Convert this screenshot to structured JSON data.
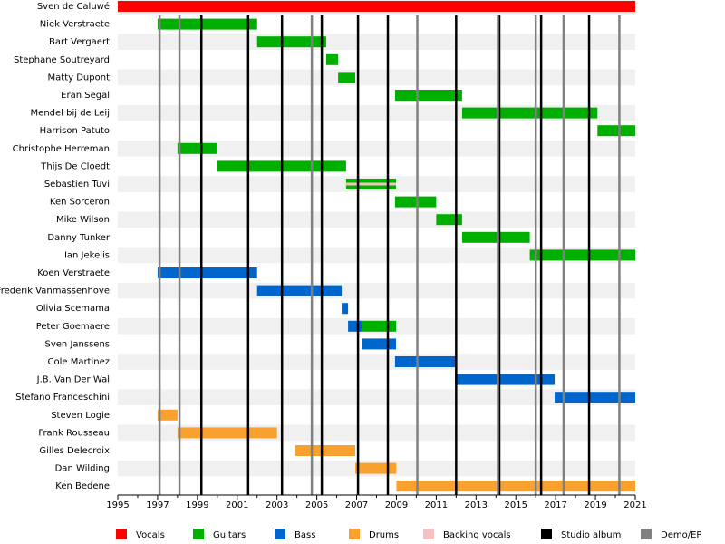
{
  "chart_data": {
    "type": "timeline",
    "categories": [
      "Sven de Caluwé",
      "Niek Verstraete",
      "Bart Vergaert",
      "Stephane Soutreyard",
      "Matty Dupont",
      "Eran Segal",
      "Mendel bij de Leij",
      "Harrison Patuto",
      "Christophe Herreman",
      "Thijs De Cloedt",
      "Sebastien Tuvi",
      "Ken Sorceron",
      "Mike Wilson",
      "Danny Tunker",
      "Ian Jekelis",
      "Koen Verstraete",
      "Frederik Vanmassenhove",
      "Olivia Scemama",
      "Peter Goemaere",
      "Sven Janssens",
      "Cole Martinez",
      "J.B. Van Der Wal",
      "Stefano Franceschini",
      "Steven Logie",
      "Frank Rousseau",
      "Gilles Delecroix",
      "Dan Wilding",
      "Ken Bedene"
    ],
    "series": [
      {
        "name": "Vocals",
        "color": "#ff0000",
        "values": [
          [
            1995,
            2021
          ],
          null,
          null,
          null,
          null,
          null,
          null,
          null,
          null,
          null,
          null,
          null,
          null,
          null,
          null,
          null,
          null,
          null,
          null,
          null,
          null,
          null,
          null,
          null,
          null,
          null,
          null,
          null
        ]
      },
      {
        "name": "Guitars",
        "color": "#00b000",
        "values": [
          null,
          [
            1997,
            2002
          ],
          [
            2002,
            2005.47
          ],
          [
            2005.47,
            2006.07
          ],
          [
            2006.07,
            2006.93
          ],
          [
            2008.93,
            2012.3
          ],
          [
            2012.3,
            2019.1
          ],
          [
            2019.1,
            2021
          ],
          [
            1998,
            2000
          ],
          [
            2000,
            2006.47
          ],
          [
            2006.47,
            2008.98
          ],
          [
            2008.93,
            2011
          ],
          [
            2011,
            2012.3
          ],
          [
            2012.3,
            2015.7
          ],
          [
            2015.7,
            2021
          ],
          null,
          null,
          null,
          [
            2007.25,
            2008.98
          ],
          null,
          null,
          null,
          null,
          null,
          null,
          null,
          null,
          null
        ]
      },
      {
        "name": "Bass",
        "color": "#0066cc",
        "values": [
          null,
          null,
          null,
          null,
          null,
          null,
          null,
          null,
          null,
          null,
          null,
          null,
          null,
          null,
          null,
          [
            1997,
            2002
          ],
          [
            2002,
            2006.25
          ],
          [
            2006.25,
            2006.57
          ],
          [
            2006.57,
            2007.25
          ],
          [
            2007.25,
            2008.98
          ],
          [
            2008.93,
            2011.95
          ],
          [
            2011.95,
            2016.95
          ],
          [
            2016.95,
            2021
          ],
          null,
          null,
          null,
          null,
          null
        ]
      },
      {
        "name": "Drums",
        "color": "#f9a12e",
        "values": [
          null,
          null,
          null,
          null,
          null,
          null,
          null,
          null,
          null,
          null,
          null,
          null,
          null,
          null,
          null,
          null,
          null,
          null,
          null,
          null,
          null,
          null,
          null,
          [
            1997,
            1998
          ],
          [
            1998,
            2003
          ],
          [
            2003.9,
            2006.93
          ],
          [
            2006.93,
            2009
          ],
          [
            2009,
            2021
          ]
        ]
      },
      {
        "name": "Backing vocals",
        "color": "#f4c2c2",
        "thin": true,
        "values": [
          null,
          null,
          null,
          null,
          null,
          null,
          null,
          null,
          null,
          null,
          [
            2006.47,
            2008.98
          ],
          null,
          null,
          null,
          null,
          null,
          null,
          null,
          null,
          null,
          null,
          null,
          null,
          null,
          null,
          null,
          null,
          null
        ]
      }
    ],
    "markers": [
      {
        "name": "Studio album",
        "color": "#000000",
        "x": [
          1999.2,
          2001.55,
          2003.25,
          2005.25,
          2007.07,
          2008.57,
          2012.0,
          2014.17,
          2016.27,
          2018.68
        ]
      },
      {
        "name": "Demo/EP",
        "color": "#808080",
        "x": [
          1997.1,
          1998.1,
          2004.75,
          2010.05,
          2014.1,
          2016.0,
          2017.4,
          2020.2
        ]
      }
    ],
    "xlim": [
      1995,
      2021
    ],
    "xticks": [
      1995,
      1997,
      1999,
      2001,
      2003,
      2005,
      2007,
      2009,
      2011,
      2013,
      2015,
      2017,
      2019,
      2021
    ],
    "xminorticks": [
      1996,
      1998,
      2000,
      2002,
      2004,
      2006,
      2008,
      2010,
      2012,
      2014,
      2016,
      2018,
      2020
    ]
  }
}
